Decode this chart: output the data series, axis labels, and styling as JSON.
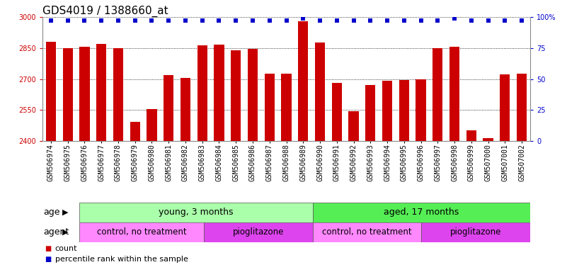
{
  "title": "GDS4019 / 1388660_at",
  "samples": [
    "GSM506974",
    "GSM506975",
    "GSM506976",
    "GSM506977",
    "GSM506978",
    "GSM506979",
    "GSM506980",
    "GSM506981",
    "GSM506982",
    "GSM506983",
    "GSM506984",
    "GSM506985",
    "GSM506986",
    "GSM506987",
    "GSM506988",
    "GSM506989",
    "GSM506990",
    "GSM506991",
    "GSM506992",
    "GSM506993",
    "GSM506994",
    "GSM506995",
    "GSM506996",
    "GSM506997",
    "GSM506998",
    "GSM506999",
    "GSM507000",
    "GSM507001",
    "GSM507002"
  ],
  "counts": [
    2880,
    2848,
    2855,
    2870,
    2848,
    2492,
    2555,
    2720,
    2705,
    2862,
    2865,
    2838,
    2845,
    2725,
    2725,
    2980,
    2878,
    2680,
    2545,
    2670,
    2690,
    2695,
    2700,
    2850,
    2855,
    2452,
    2415,
    2722,
    2725
  ],
  "percentile_ranks": [
    97,
    97,
    97,
    97,
    97,
    97,
    97,
    97,
    97,
    97,
    97,
    97,
    97,
    97,
    97,
    99,
    97,
    97,
    97,
    97,
    97,
    97,
    97,
    97,
    99,
    97,
    97,
    97,
    97
  ],
  "y_min": 2400,
  "y_max": 3000,
  "y_ticks": [
    2400,
    2550,
    2700,
    2850,
    3000
  ],
  "y_right_ticks": [
    0,
    25,
    50,
    75,
    100
  ],
  "bar_color": "#cc0000",
  "dot_color": "#0000cc",
  "bar_width": 0.6,
  "age_groups": [
    {
      "label": "young, 3 months",
      "start": 0,
      "end": 15,
      "color": "#aaffaa"
    },
    {
      "label": "aged, 17 months",
      "start": 15,
      "end": 29,
      "color": "#55ee55"
    }
  ],
  "agent_groups": [
    {
      "label": "control, no treatment",
      "start": 0,
      "end": 8,
      "color": "#ff88ff"
    },
    {
      "label": "pioglitazone",
      "start": 8,
      "end": 15,
      "color": "#dd44ee"
    },
    {
      "label": "control, no treatment",
      "start": 15,
      "end": 22,
      "color": "#ff88ff"
    },
    {
      "label": "pioglitazone",
      "start": 22,
      "end": 29,
      "color": "#dd44ee"
    }
  ],
  "title_fontsize": 11,
  "tick_fontsize": 7,
  "band_fontsize": 9,
  "legend_fontsize": 8,
  "label_fontsize": 9
}
